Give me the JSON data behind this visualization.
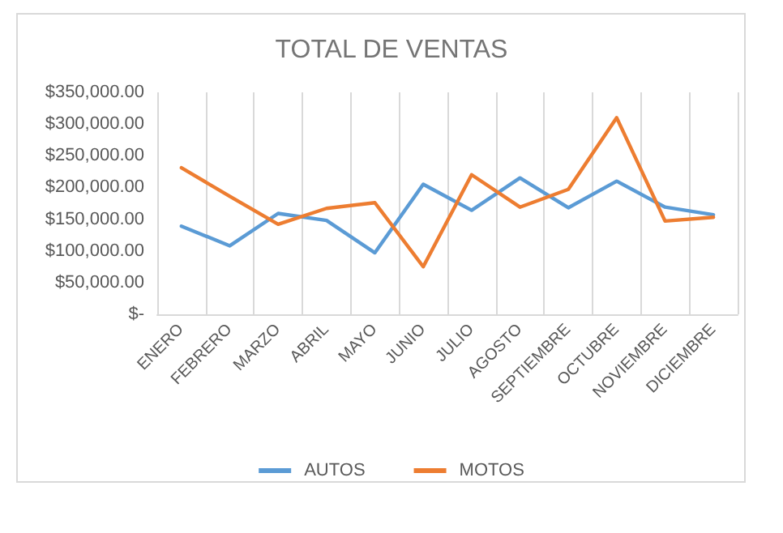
{
  "chart_data": {
    "type": "line",
    "title": "TOTAL DE VENTAS",
    "categories": [
      "ENERO",
      "FEBRERO",
      "MARZO",
      "ABRIL",
      "MAYO",
      "JUNIO",
      "JULIO",
      "AGOSTO",
      "SEPTIEMBRE",
      "OCTUBRE",
      "NOVIEMBRE",
      "DICIEMBRE"
    ],
    "series": [
      {
        "name": "AUTOS",
        "color": "#5b9bd5",
        "values": [
          139000,
          108000,
          159000,
          148000,
          97000,
          205000,
          164000,
          215000,
          168000,
          210000,
          169000,
          157000
        ]
      },
      {
        "name": "MOTOS",
        "color": "#ed7d31",
        "values": [
          231000,
          186000,
          142000,
          167000,
          176000,
          75000,
          220000,
          169000,
          197000,
          310000,
          147000,
          153000
        ]
      }
    ],
    "ylim": [
      0,
      350000
    ],
    "yticks": [
      {
        "value": 0,
        "label": "$-"
      },
      {
        "value": 50000,
        "label": "$50,000.00"
      },
      {
        "value": 100000,
        "label": "$100,000.00"
      },
      {
        "value": 150000,
        "label": "$150,000.00"
      },
      {
        "value": 200000,
        "label": "$200,000.00"
      },
      {
        "value": 250000,
        "label": "$250,000.00"
      },
      {
        "value": 300000,
        "label": "$300,000.00"
      },
      {
        "value": 350000,
        "label": "$350,000.00"
      }
    ],
    "grid": "x",
    "legend": "bottom",
    "marker": "none",
    "line_style": "solid"
  }
}
